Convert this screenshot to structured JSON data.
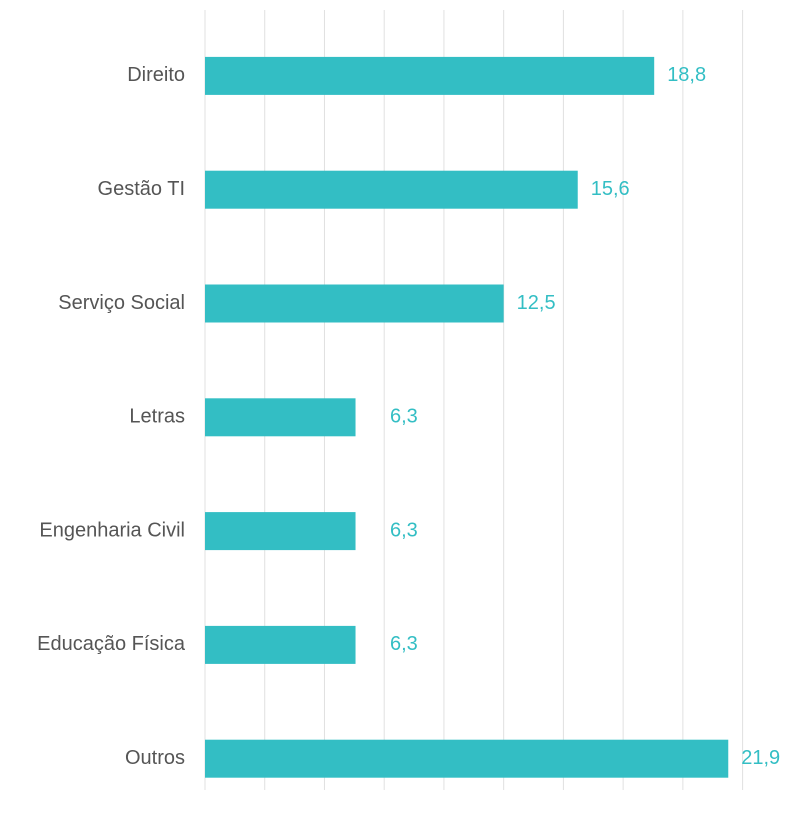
{
  "chart_data": {
    "type": "bar",
    "orientation": "horizontal",
    "categories": [
      "Direito",
      "Gestão TI",
      "Serviço Social",
      "Letras",
      "Engenharia Civil",
      "Educação Física",
      "Outros"
    ],
    "values": [
      18.8,
      15.6,
      12.5,
      6.3,
      6.3,
      6.3,
      21.9
    ],
    "value_labels": [
      "18,8",
      "15,6",
      "12,5",
      "6,3",
      "6,3",
      "6,3",
      "21,9"
    ],
    "color": "#33bec4",
    "xlim": [
      0,
      22.5
    ],
    "xticks": [
      0,
      2.5,
      5,
      7.5,
      10,
      12.5,
      15,
      17.5,
      20,
      22.5
    ],
    "grid": true
  }
}
